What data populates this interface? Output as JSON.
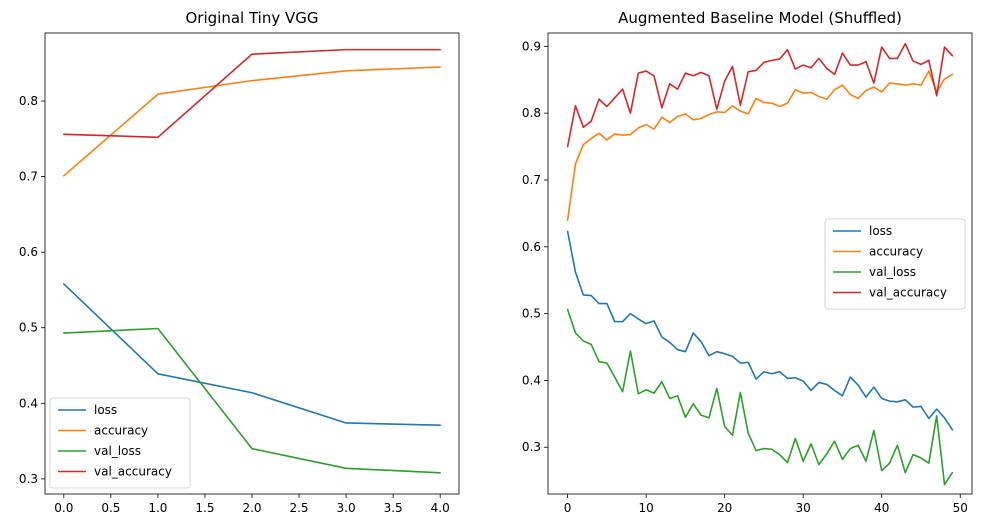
{
  "chart_data": [
    {
      "type": "line",
      "title": "Original Tiny VGG",
      "xlim": [
        -0.2,
        4.2
      ],
      "ylim": [
        0.28,
        0.89
      ],
      "xticks": [
        0.0,
        0.5,
        1.0,
        1.5,
        2.0,
        2.5,
        3.0,
        3.5,
        4.0
      ],
      "xtick_labels": [
        "0.0",
        "0.5",
        "1.0",
        "1.5",
        "2.0",
        "2.5",
        "3.0",
        "3.5",
        "4.0"
      ],
      "yticks": [
        0.3,
        0.4,
        0.5,
        0.6,
        0.7,
        0.8
      ],
      "ytick_labels": [
        "0.3",
        "0.4",
        "0.5",
        "0.6",
        "0.7",
        "0.8"
      ],
      "legend_position": "bottom-left",
      "x": [
        0,
        1,
        2,
        3,
        4
      ],
      "series": [
        {
          "name": "loss",
          "color": "#1f77b4",
          "values": [
            0.558,
            0.439,
            0.414,
            0.374,
            0.371
          ]
        },
        {
          "name": "accuracy",
          "color": "#ff7f0e",
          "values": [
            0.701,
            0.809,
            0.827,
            0.84,
            0.845
          ]
        },
        {
          "name": "val_loss",
          "color": "#2ca02c",
          "values": [
            0.493,
            0.499,
            0.34,
            0.314,
            0.308
          ]
        },
        {
          "name": "val_accuracy",
          "color": "#d62728",
          "values": [
            0.756,
            0.752,
            0.862,
            0.868,
            0.868
          ]
        }
      ]
    },
    {
      "type": "line",
      "title": "Augmented Baseline Model (Shuffled)",
      "xlim": [
        -2.5,
        51.5
      ],
      "ylim": [
        0.23,
        0.92
      ],
      "xticks": [
        0,
        10,
        20,
        30,
        40,
        50
      ],
      "xtick_labels": [
        "0",
        "10",
        "20",
        "30",
        "40",
        "50"
      ],
      "yticks": [
        0.3,
        0.4,
        0.5,
        0.6,
        0.7,
        0.8,
        0.9
      ],
      "ytick_labels": [
        "0.3",
        "0.4",
        "0.5",
        "0.6",
        "0.7",
        "0.8",
        "0.9"
      ],
      "legend_position": "center-right",
      "x": [
        0,
        1,
        2,
        3,
        4,
        5,
        6,
        7,
        8,
        9,
        10,
        11,
        12,
        13,
        14,
        15,
        16,
        17,
        18,
        19,
        20,
        21,
        22,
        23,
        24,
        25,
        26,
        27,
        28,
        29,
        30,
        31,
        32,
        33,
        34,
        35,
        36,
        37,
        38,
        39,
        40,
        41,
        42,
        43,
        44,
        45,
        46,
        47,
        48,
        49
      ],
      "series": [
        {
          "name": "loss",
          "color": "#1f77b4",
          "values": [
            0.623,
            0.562,
            0.528,
            0.527,
            0.515,
            0.515,
            0.488,
            0.488,
            0.5,
            0.492,
            0.485,
            0.489,
            0.465,
            0.457,
            0.446,
            0.443,
            0.471,
            0.458,
            0.437,
            0.443,
            0.44,
            0.436,
            0.426,
            0.427,
            0.402,
            0.413,
            0.41,
            0.413,
            0.403,
            0.404,
            0.399,
            0.385,
            0.397,
            0.394,
            0.385,
            0.377,
            0.405,
            0.393,
            0.375,
            0.39,
            0.373,
            0.369,
            0.368,
            0.371,
            0.36,
            0.361,
            0.343,
            0.357,
            0.344,
            0.326
          ]
        },
        {
          "name": "accuracy",
          "color": "#ff7f0e",
          "values": [
            0.64,
            0.724,
            0.753,
            0.762,
            0.77,
            0.76,
            0.769,
            0.767,
            0.768,
            0.778,
            0.783,
            0.776,
            0.794,
            0.786,
            0.795,
            0.799,
            0.79,
            0.792,
            0.798,
            0.802,
            0.801,
            0.811,
            0.803,
            0.799,
            0.822,
            0.816,
            0.815,
            0.81,
            0.815,
            0.835,
            0.83,
            0.831,
            0.825,
            0.821,
            0.835,
            0.842,
            0.828,
            0.822,
            0.834,
            0.839,
            0.832,
            0.845,
            0.844,
            0.842,
            0.844,
            0.842,
            0.863,
            0.832,
            0.851,
            0.858
          ]
        },
        {
          "name": "val_loss",
          "color": "#2ca02c",
          "values": [
            0.506,
            0.471,
            0.459,
            0.454,
            0.428,
            0.426,
            0.405,
            0.383,
            0.444,
            0.38,
            0.386,
            0.381,
            0.398,
            0.373,
            0.377,
            0.345,
            0.365,
            0.348,
            0.344,
            0.388,
            0.331,
            0.318,
            0.382,
            0.321,
            0.295,
            0.298,
            0.297,
            0.289,
            0.277,
            0.313,
            0.279,
            0.305,
            0.274,
            0.29,
            0.309,
            0.282,
            0.298,
            0.303,
            0.279,
            0.325,
            0.265,
            0.276,
            0.303,
            0.262,
            0.289,
            0.284,
            0.276,
            0.347,
            0.244,
            0.262
          ]
        },
        {
          "name": "val_accuracy",
          "color": "#d62728",
          "values": [
            0.75,
            0.811,
            0.779,
            0.788,
            0.821,
            0.81,
            0.823,
            0.836,
            0.8,
            0.86,
            0.863,
            0.856,
            0.808,
            0.844,
            0.836,
            0.86,
            0.856,
            0.861,
            0.856,
            0.806,
            0.848,
            0.87,
            0.812,
            0.862,
            0.864,
            0.876,
            0.879,
            0.881,
            0.895,
            0.866,
            0.872,
            0.868,
            0.882,
            0.867,
            0.858,
            0.89,
            0.872,
            0.872,
            0.877,
            0.845,
            0.899,
            0.882,
            0.882,
            0.904,
            0.878,
            0.873,
            0.879,
            0.826,
            0.899,
            0.886
          ]
        }
      ]
    }
  ]
}
